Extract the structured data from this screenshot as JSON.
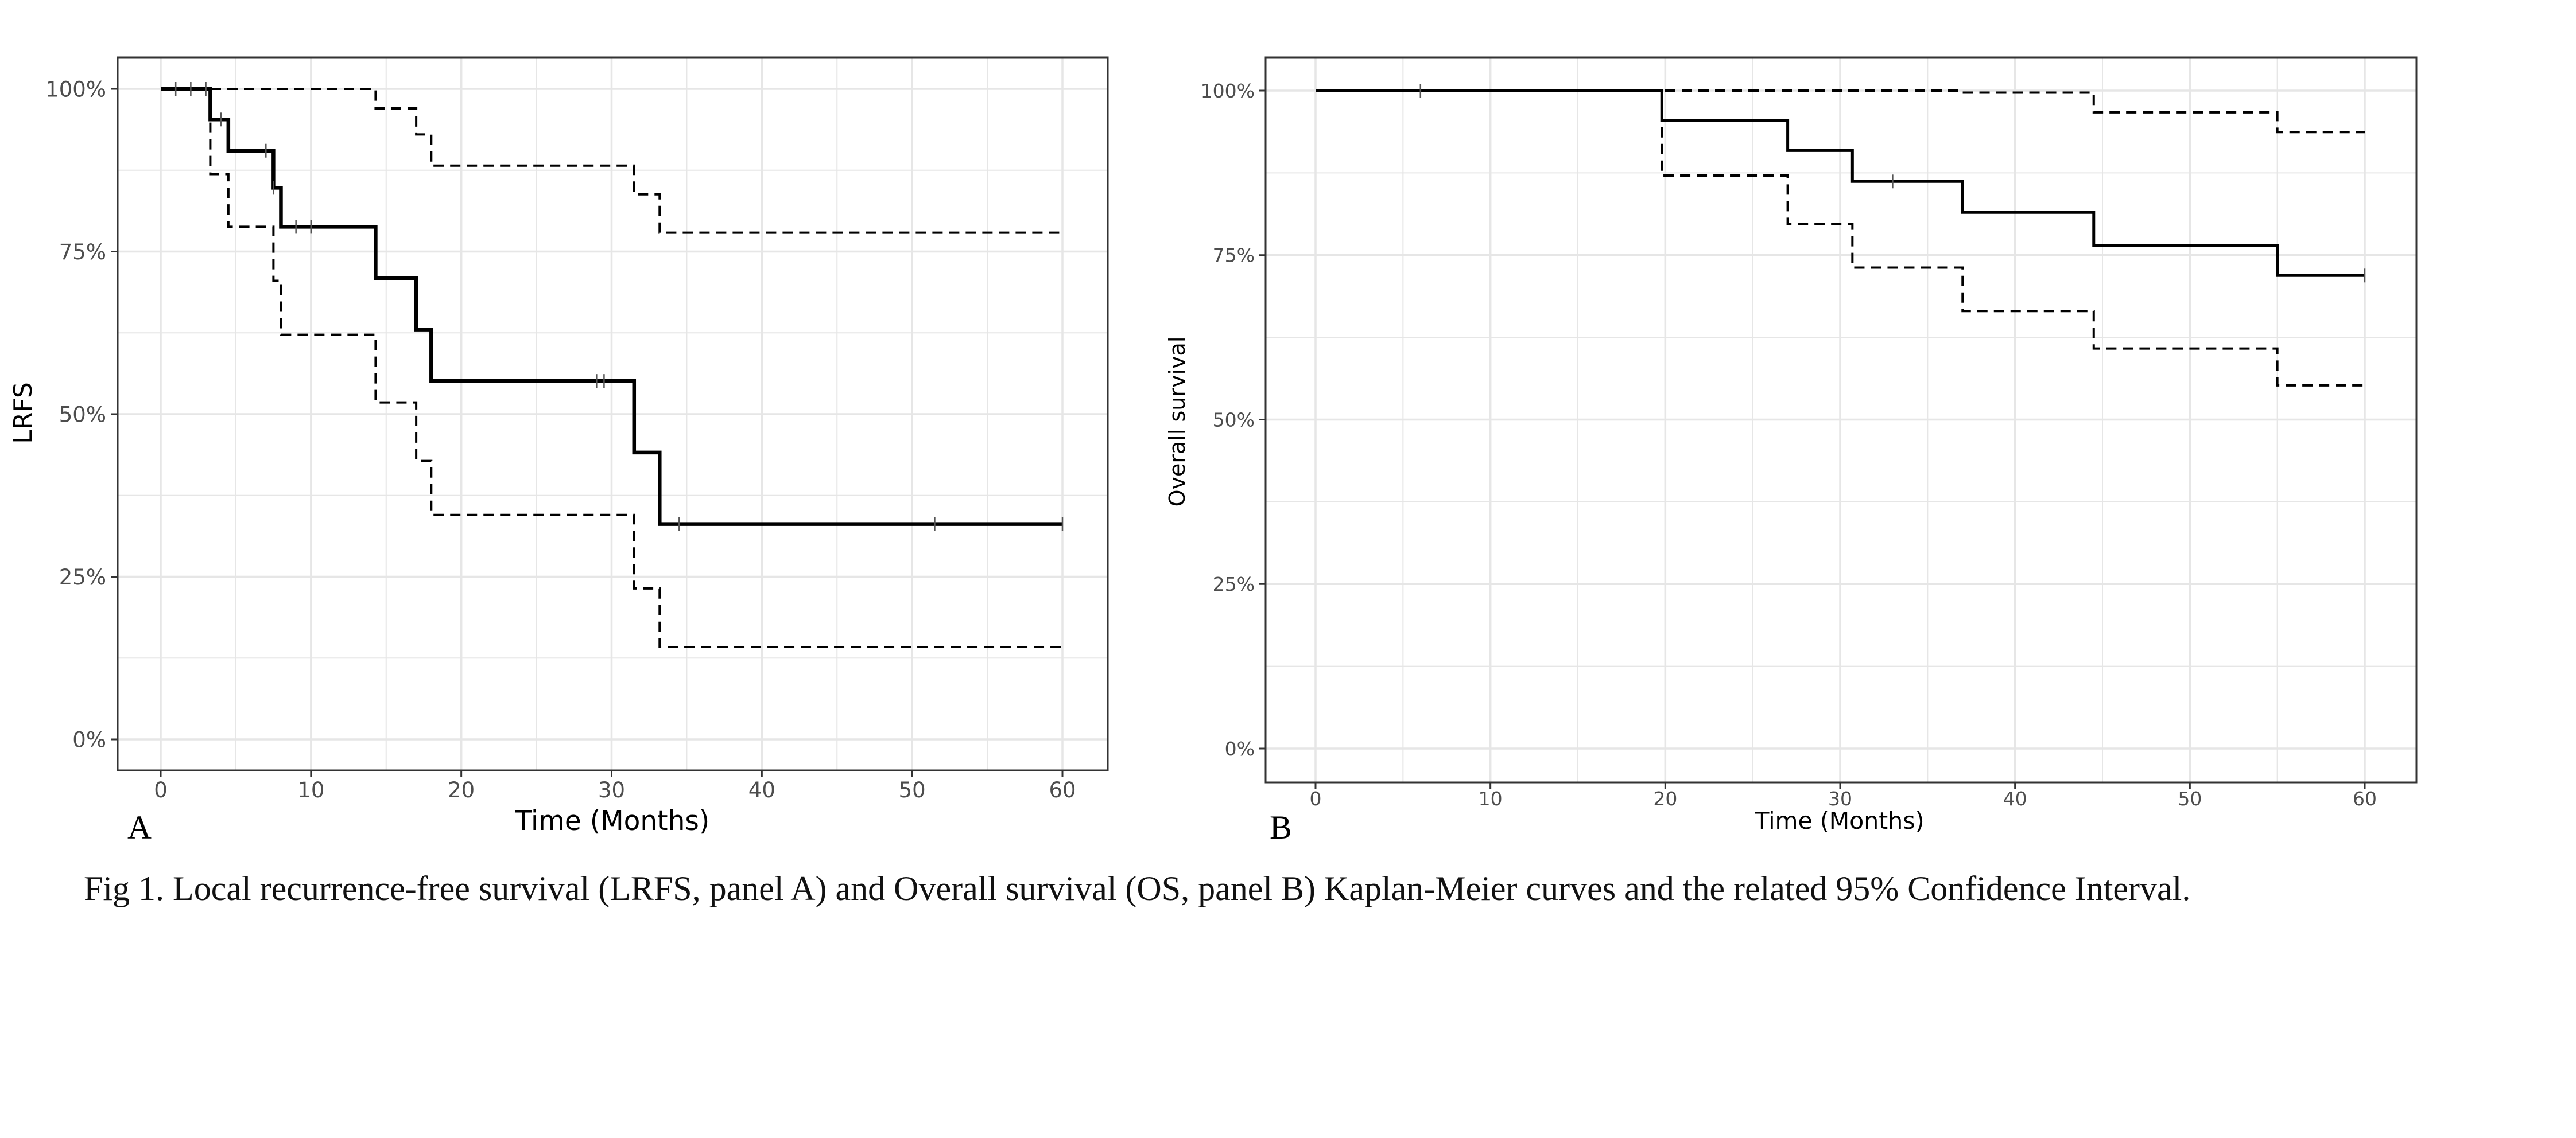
{
  "caption": "Fig 1.  Local recurrence-free survival (LRFS, panel A) and Overall survival (OS, panel B) Kaplan-Meier curves and the related 95% Confidence Interval.",
  "colors": {
    "curve": "#000000",
    "grid": "#e6e6e6",
    "panel_border": "#333333",
    "tick_text": "#4d4d4d"
  },
  "chart_data": [
    {
      "type": "line",
      "panel_label": "A",
      "xlabel": "Time (Months)",
      "ylabel": "LRFS",
      "xlim": [
        0,
        60
      ],
      "ylim": [
        0,
        1
      ],
      "x_ticks": [
        0,
        10,
        20,
        30,
        40,
        50,
        60
      ],
      "x_tick_labels": [
        "0",
        "10",
        "20",
        "30",
        "40",
        "50",
        "60"
      ],
      "y_ticks": [
        0,
        0.25,
        0.5,
        0.75,
        1
      ],
      "y_tick_labels": [
        "0%",
        "25%",
        "50%",
        "75%",
        "100%"
      ],
      "grid": true,
      "legend": "none",
      "series": [
        {
          "role": "estimate",
          "style": "solid",
          "x": [
            0,
            3.3,
            4.5,
            7.5,
            8,
            14.3,
            17,
            18,
            31.5,
            33.2,
            60
          ],
          "y": [
            1,
            0.953,
            0.905,
            0.848,
            0.788,
            0.709,
            0.63,
            0.551,
            0.441,
            0.331,
            0.331
          ]
        },
        {
          "role": "upper_ci",
          "style": "dashed",
          "x": [
            0,
            14.3,
            17,
            18,
            31.5,
            33.2,
            60
          ],
          "y": [
            1,
            0.97,
            0.93,
            0.882,
            0.838,
            0.779,
            0.779
          ]
        },
        {
          "role": "lower_ci",
          "style": "dashed",
          "x": [
            0,
            3.3,
            4.5,
            7.5,
            8,
            14.3,
            17,
            18,
            31.5,
            33.2,
            60
          ],
          "y": [
            1,
            0.869,
            0.788,
            0.705,
            0.622,
            0.518,
            0.428,
            0.345,
            0.232,
            0.142,
            0.142
          ]
        }
      ],
      "censor_marks": {
        "x": [
          1,
          2,
          3,
          4,
          7,
          7.5,
          9,
          10,
          29,
          29.5,
          34.5,
          51.5,
          60
        ],
        "y": [
          1,
          1,
          1,
          0.953,
          0.905,
          0.848,
          0.788,
          0.788,
          0.551,
          0.551,
          0.331,
          0.331,
          0.331
        ]
      }
    },
    {
      "type": "line",
      "panel_label": "B",
      "xlabel": "Time (Months)",
      "ylabel": "Overall survival",
      "xlim": [
        0,
        60
      ],
      "ylim": [
        0,
        1
      ],
      "x_ticks": [
        0,
        10,
        20,
        30,
        40,
        50,
        60
      ],
      "x_tick_labels": [
        "0",
        "10",
        "20",
        "30",
        "40",
        "50",
        "60"
      ],
      "y_ticks": [
        0,
        0.25,
        0.5,
        0.75,
        1
      ],
      "y_tick_labels": [
        "0%",
        "25%",
        "50%",
        "75%",
        "100%"
      ],
      "grid": true,
      "legend": "none",
      "series": [
        {
          "role": "estimate",
          "style": "solid",
          "x": [
            0,
            19.8,
            27,
            30.7,
            37,
            44.5,
            55,
            60
          ],
          "y": [
            1,
            0.955,
            0.909,
            0.862,
            0.815,
            0.765,
            0.719,
            0.719
          ]
        },
        {
          "role": "upper_ci",
          "style": "dashed",
          "x": [
            0,
            37,
            44.5,
            55,
            60
          ],
          "y": [
            1,
            0.997,
            0.967,
            0.937,
            0.937
          ]
        },
        {
          "role": "lower_ci",
          "style": "dashed",
          "x": [
            0,
            19.8,
            27,
            30.7,
            37,
            44.5,
            55,
            60
          ],
          "y": [
            1,
            0.871,
            0.797,
            0.731,
            0.665,
            0.608,
            0.552,
            0.552
          ]
        }
      ],
      "censor_marks": {
        "x": [
          6,
          33,
          60
        ],
        "y": [
          1,
          0.862,
          0.719
        ]
      }
    }
  ]
}
